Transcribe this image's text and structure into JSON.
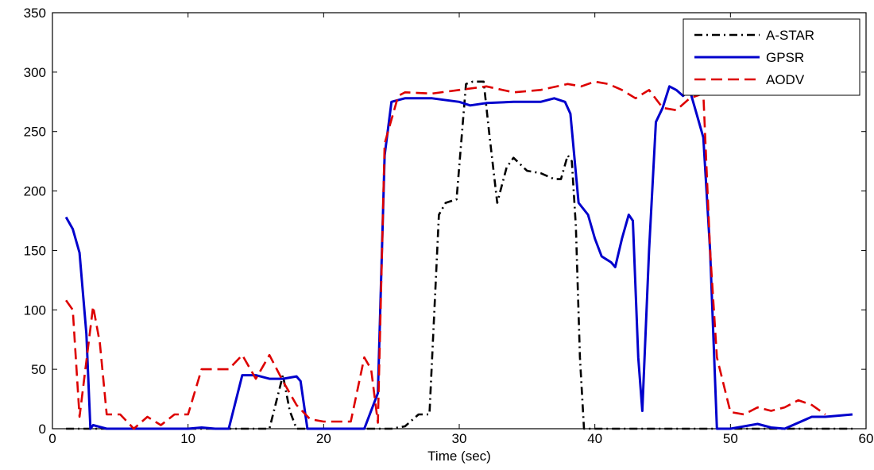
{
  "chart_data": {
    "type": "line",
    "title": "",
    "xlabel": "Time (sec)",
    "ylabel": "",
    "xlim": [
      0,
      60
    ],
    "ylim": [
      0,
      350
    ],
    "xticks": [
      0,
      10,
      20,
      30,
      40,
      50,
      60
    ],
    "yticks": [
      0,
      50,
      100,
      150,
      200,
      250,
      300,
      350
    ],
    "grid": false,
    "legend_position": "top-right",
    "series": [
      {
        "name": "A-STAR",
        "color": "#000000",
        "style": "dashdot",
        "points": [
          [
            1,
            0
          ],
          [
            10,
            0
          ],
          [
            16,
            0
          ],
          [
            17,
            45
          ],
          [
            17.5,
            15
          ],
          [
            18,
            0
          ],
          [
            20,
            0
          ],
          [
            25,
            0
          ],
          [
            26,
            2
          ],
          [
            27,
            12
          ],
          [
            27.8,
            12
          ],
          [
            28.5,
            180
          ],
          [
            29,
            190
          ],
          [
            29.8,
            193
          ],
          [
            30.5,
            290
          ],
          [
            31,
            292
          ],
          [
            31.8,
            292
          ],
          [
            32.2,
            250
          ],
          [
            32.8,
            190
          ],
          [
            33.5,
            220
          ],
          [
            34,
            228
          ],
          [
            35,
            217
          ],
          [
            36,
            215
          ],
          [
            37,
            210
          ],
          [
            37.5,
            210
          ],
          [
            38,
            230
          ],
          [
            38.3,
            225
          ],
          [
            38.6,
            170
          ],
          [
            38.9,
            60
          ],
          [
            39.2,
            0
          ],
          [
            40,
            0
          ],
          [
            50,
            0
          ],
          [
            59,
            0
          ]
        ]
      },
      {
        "name": "GPSR",
        "color": "#0000cc",
        "style": "solid",
        "points": [
          [
            1,
            178
          ],
          [
            1.5,
            168
          ],
          [
            2,
            148
          ],
          [
            2.5,
            80
          ],
          [
            2.8,
            0
          ],
          [
            3,
            3
          ],
          [
            4,
            0
          ],
          [
            10,
            0
          ],
          [
            11,
            1
          ],
          [
            12,
            0
          ],
          [
            13,
            0
          ],
          [
            14,
            45
          ],
          [
            15,
            45
          ],
          [
            16,
            42
          ],
          [
            17,
            42
          ],
          [
            18,
            44
          ],
          [
            18.3,
            40
          ],
          [
            18.8,
            0
          ],
          [
            20,
            0
          ],
          [
            23,
            0
          ],
          [
            24,
            30
          ],
          [
            24.5,
            230
          ],
          [
            25,
            275
          ],
          [
            26,
            278
          ],
          [
            28,
            278
          ],
          [
            30,
            275
          ],
          [
            30.8,
            272
          ],
          [
            32,
            274
          ],
          [
            34,
            275
          ],
          [
            36,
            275
          ],
          [
            37,
            278
          ],
          [
            37.8,
            275
          ],
          [
            38.2,
            265
          ],
          [
            38.8,
            190
          ],
          [
            39.5,
            180
          ],
          [
            40,
            160
          ],
          [
            40.5,
            145
          ],
          [
            41.2,
            140
          ],
          [
            41.5,
            136
          ],
          [
            42,
            160
          ],
          [
            42.5,
            180
          ],
          [
            42.8,
            175
          ],
          [
            43.2,
            60
          ],
          [
            43.5,
            15
          ],
          [
            44,
            150
          ],
          [
            44.5,
            258
          ],
          [
            45,
            270
          ],
          [
            45.5,
            288
          ],
          [
            46,
            285
          ],
          [
            46.5,
            280
          ],
          [
            47,
            285
          ],
          [
            47.5,
            265
          ],
          [
            48,
            245
          ],
          [
            48.5,
            150
          ],
          [
            49,
            0
          ],
          [
            50,
            0
          ],
          [
            51,
            2
          ],
          [
            52,
            4
          ],
          [
            53,
            1
          ],
          [
            54,
            0
          ],
          [
            56,
            10
          ],
          [
            57,
            10
          ],
          [
            58,
            11
          ],
          [
            59,
            12
          ]
        ]
      },
      {
        "name": "AODV",
        "color": "#dd0000",
        "style": "dashed",
        "points": [
          [
            1,
            108
          ],
          [
            1.5,
            100
          ],
          [
            2,
            10
          ],
          [
            3,
            103
          ],
          [
            3.5,
            72
          ],
          [
            4,
            12
          ],
          [
            5,
            12
          ],
          [
            6,
            0
          ],
          [
            7,
            10
          ],
          [
            8,
            3
          ],
          [
            9,
            12
          ],
          [
            10,
            12
          ],
          [
            11,
            50
          ],
          [
            13,
            50
          ],
          [
            14,
            62
          ],
          [
            15,
            42
          ],
          [
            16,
            62
          ],
          [
            17,
            40
          ],
          [
            18,
            20
          ],
          [
            19,
            8
          ],
          [
            20,
            6
          ],
          [
            22,
            6
          ],
          [
            23,
            60
          ],
          [
            23.5,
            50
          ],
          [
            24,
            5
          ],
          [
            24.5,
            240
          ],
          [
            25.5,
            280
          ],
          [
            26,
            283
          ],
          [
            28,
            282
          ],
          [
            30,
            285
          ],
          [
            32,
            288
          ],
          [
            34,
            283
          ],
          [
            36,
            285
          ],
          [
            38,
            290
          ],
          [
            39,
            288
          ],
          [
            40,
            292
          ],
          [
            41,
            290
          ],
          [
            42,
            285
          ],
          [
            43,
            278
          ],
          [
            44,
            285
          ],
          [
            45,
            270
          ],
          [
            46,
            268
          ],
          [
            47,
            278
          ],
          [
            48,
            282
          ],
          [
            48.5,
            150
          ],
          [
            49,
            60
          ],
          [
            50,
            14
          ],
          [
            51,
            12
          ],
          [
            52,
            18
          ],
          [
            53,
            15
          ],
          [
            54,
            18
          ],
          [
            55,
            24
          ],
          [
            56,
            20
          ],
          [
            57,
            12
          ]
        ]
      }
    ]
  }
}
